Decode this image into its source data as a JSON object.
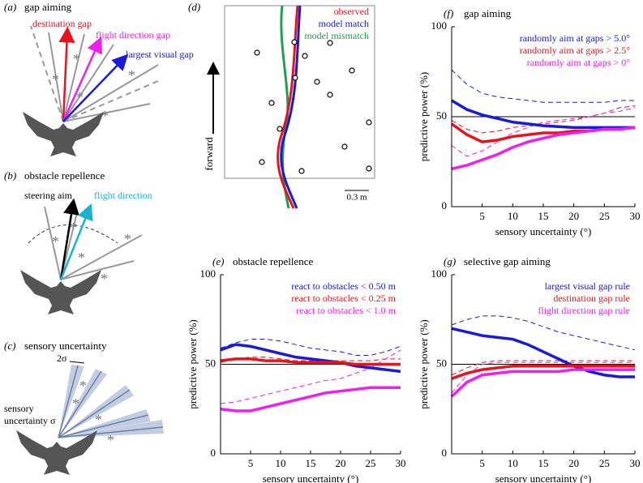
{
  "panels": {
    "a": {
      "label": "(a)",
      "title": "gap aiming",
      "destination": "destination gap",
      "flight": "flight direction gap",
      "largest": "largest visual gap"
    },
    "b": {
      "label": "(b)",
      "title": "obstacle repellence",
      "steering": "steering aim",
      "flight": "flight direction"
    },
    "c": {
      "label": "(c)",
      "title": "sensory uncertainty",
      "width": "2σ",
      "sensory": "sensory",
      "uncertainty": "uncertainty σ"
    },
    "d": {
      "label": "(d)",
      "observed": "observed",
      "match": "model match",
      "mismatch": "model mismatch",
      "forward": "forward",
      "scale": "0.3 m"
    }
  },
  "chart_data": [
    {
      "type": "line",
      "label": "(f)",
      "title": "gap aiming",
      "xlabel": "sensory uncertainty (°)",
      "ylabel": "predictive power (%)",
      "x": [
        0,
        2.5,
        5,
        7.5,
        10,
        12.5,
        15,
        17.5,
        20,
        22.5,
        25,
        27.5,
        30
      ],
      "xlim": [
        0,
        30
      ],
      "ylim": [
        0,
        100
      ],
      "xticks": [
        5,
        10,
        15,
        20,
        25,
        30
      ],
      "yticks": [
        0,
        50,
        100
      ],
      "hline": 50,
      "series": [
        {
          "name": "randomly aim at gaps > 5.0°",
          "color": "#1a1adb",
          "values": [
            59,
            54,
            51,
            49,
            47,
            46,
            45,
            44.5,
            44,
            44,
            44,
            44,
            44
          ],
          "dashed_values": [
            76,
            68,
            63,
            61,
            60,
            59,
            58,
            58,
            58,
            58,
            58,
            59,
            59
          ]
        },
        {
          "name": "randomly aim at gaps > 2.5°",
          "color": "#e8141c",
          "values": [
            46,
            40,
            36,
            37,
            39,
            40,
            41,
            41,
            42,
            42,
            43,
            43,
            44
          ],
          "dashed_values": [
            48,
            43,
            41,
            42,
            44,
            45,
            46,
            47,
            48,
            50,
            52,
            55,
            56
          ]
        },
        {
          "name": "randomly aim at gaps > 0°",
          "color": "#f01ef0",
          "values": [
            21,
            23,
            26,
            29,
            33,
            36,
            38,
            40,
            41,
            42,
            43,
            43,
            44
          ],
          "dashed_values": [
            34,
            28,
            31,
            36,
            41,
            44,
            47,
            48,
            49,
            50,
            52,
            53,
            55
          ]
        }
      ]
    },
    {
      "type": "line",
      "label": "(e)",
      "title": "obstacle repellence",
      "xlabel": "sensory uncertainty (°)",
      "ylabel": "predictive power (%)",
      "x": [
        0,
        2.5,
        5,
        7.5,
        10,
        12.5,
        15,
        17.5,
        20,
        22.5,
        25,
        27.5,
        30
      ],
      "xlim": [
        0,
        30
      ],
      "ylim": [
        0,
        100
      ],
      "xticks": [
        5,
        10,
        15,
        20,
        25,
        30
      ],
      "yticks": [
        0,
        50,
        100
      ],
      "hline": 50,
      "series": [
        {
          "name": "react to obstacles < 0.50 m",
          "color": "#1a1adb",
          "values": [
            58,
            61,
            60,
            58,
            56,
            54,
            53,
            52,
            51,
            49,
            48,
            47,
            46
          ],
          "dashed_values": [
            59,
            62,
            64,
            64,
            63,
            61,
            59,
            58,
            57,
            55,
            55,
            57,
            60
          ]
        },
        {
          "name": "react to obstacles < 0.25 m",
          "color": "#e8141c",
          "values": [
            52,
            53,
            53,
            52,
            52,
            51,
            51,
            51,
            51,
            50,
            50,
            50,
            50
          ],
          "dashed_values": [
            51,
            53,
            54,
            54,
            53,
            52,
            52,
            52,
            52,
            52,
            52,
            53,
            53
          ]
        },
        {
          "name": "react to obstacles < 1.0 m",
          "color": "#f01ef0",
          "values": [
            25,
            24,
            24,
            26,
            28,
            30,
            32,
            34,
            35,
            36,
            37,
            37,
            37
          ],
          "dashed_values": [
            28,
            29,
            31,
            33,
            35,
            37,
            39,
            41,
            42,
            45,
            48,
            53,
            58
          ]
        }
      ]
    },
    {
      "type": "line",
      "label": "(g)",
      "title": "selective gap aiming",
      "xlabel": "sensory uncertainty (°)",
      "ylabel": "predictive power (%)",
      "x": [
        0,
        2.5,
        5,
        7.5,
        10,
        12.5,
        15,
        17.5,
        20,
        22.5,
        25,
        27.5,
        30
      ],
      "xlim": [
        0,
        30
      ],
      "ylim": [
        0,
        100
      ],
      "xticks": [
        5,
        10,
        15,
        20,
        25,
        30
      ],
      "yticks": [
        0,
        50,
        100
      ],
      "hline": 50,
      "series": [
        {
          "name": "largest visual gap rule",
          "color": "#1a1adb",
          "values": [
            70,
            68,
            66,
            65,
            64,
            61,
            57,
            53,
            49,
            46,
            44,
            43,
            43
          ],
          "dashed_values": [
            72,
            75,
            77,
            77,
            76,
            74,
            71,
            68,
            66,
            64,
            62,
            60,
            58
          ]
        },
        {
          "name": "destination gap rule",
          "color": "#e8141c",
          "values": [
            42,
            45,
            47,
            48,
            49,
            49,
            49,
            49,
            49,
            49,
            49,
            49,
            49
          ],
          "dashed_values": [
            44,
            48,
            51,
            52,
            52,
            52,
            52,
            52,
            52,
            52,
            52,
            52,
            52
          ]
        },
        {
          "name": "flight direction gap rule",
          "color": "#f01ef0",
          "values": [
            32,
            40,
            44,
            45,
            46,
            46,
            46,
            46,
            47,
            47,
            47,
            47,
            47
          ],
          "dashed_values": [
            34,
            44,
            50,
            51,
            51,
            51,
            51,
            51,
            51,
            51,
            51,
            51,
            51
          ]
        }
      ]
    }
  ]
}
